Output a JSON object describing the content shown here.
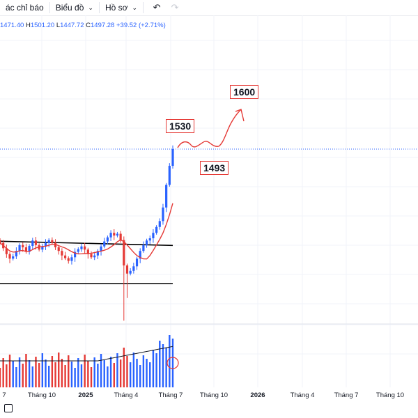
{
  "toolbar": {
    "indicators_label": "ác chỉ báo",
    "chart_label": "Biểu đồ",
    "profile_label": "Hồ sơ"
  },
  "ohlc": {
    "open": "1471.40",
    "high_label": "H",
    "high": "1501.20",
    "low_label": "L",
    "low": "1447.72",
    "close_label": "C",
    "close": "1497.28",
    "change": "+39.52 (+2.71%)"
  },
  "annotations": {
    "target_high": "1600",
    "resistance": "1530",
    "current": "1493"
  },
  "xaxis": {
    "labels": [
      "7",
      "Tháng 10",
      "2025",
      "Tháng 4",
      "Tháng 7",
      "Tháng 10",
      "2026",
      "Tháng 4",
      "Tháng 7",
      "Tháng 10"
    ]
  },
  "colors": {
    "up": "#2962ff",
    "down": "#e53935",
    "ma": "#e53935",
    "volume_ma": "#131722",
    "annotation_border": "#e53935",
    "price_line": "#2962ff"
  },
  "chart_data": {
    "type": "candlestick",
    "series": [
      {
        "name": "price",
        "values": [
          1290,
          1278,
          1265,
          1255,
          1260,
          1272,
          1285,
          1280,
          1270,
          1283,
          1295,
          1285,
          1275,
          1282,
          1290,
          1296,
          1290,
          1280,
          1272,
          1262,
          1256,
          1250,
          1258,
          1270,
          1276,
          1282,
          1275,
          1265,
          1258,
          1262,
          1272,
          1282,
          1293,
          1302,
          1312,
          1306,
          1310,
          1296,
          1240,
          1222,
          1228,
          1238,
          1255,
          1272,
          1285,
          1295,
          1300,
          1312,
          1325,
          1338,
          1368,
          1418,
          1460,
          1497
        ]
      }
    ]
  },
  "price_levels": {
    "channel_top": 1295,
    "channel_bottom": 1200,
    "current_price": 1497
  }
}
